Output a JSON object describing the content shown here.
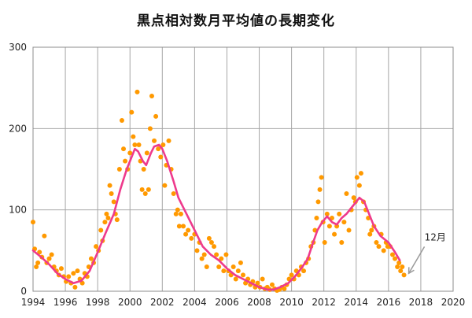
{
  "chart_data": {
    "type": "scatter",
    "title": "黒点相対数月平均値の長期変化",
    "xlabel": "",
    "ylabel": "",
    "xlim": [
      1994,
      2020
    ],
    "ylim": [
      0,
      300
    ],
    "x_ticks": [
      1994,
      1996,
      1998,
      2000,
      2002,
      2004,
      2006,
      2008,
      2010,
      2012,
      2014,
      2016,
      2018,
      2020
    ],
    "y_ticks": [
      0,
      100,
      200,
      300
    ],
    "grid": true,
    "annotation": {
      "text": "12月",
      "x": 2016.96,
      "y": 20
    },
    "series": [
      {
        "type": "scatter",
        "color": "#ff9900",
        "points": [
          [
            1994.0,
            85
          ],
          [
            1994.1,
            52
          ],
          [
            1994.2,
            30
          ],
          [
            1994.3,
            35
          ],
          [
            1994.4,
            48
          ],
          [
            1994.55,
            42
          ],
          [
            1994.7,
            68
          ],
          [
            1994.85,
            35
          ],
          [
            1995.0,
            40
          ],
          [
            1995.15,
            45
          ],
          [
            1995.3,
            30
          ],
          [
            1995.45,
            25
          ],
          [
            1995.6,
            20
          ],
          [
            1995.75,
            28
          ],
          [
            1995.9,
            18
          ],
          [
            1996.05,
            12
          ],
          [
            1996.2,
            18
          ],
          [
            1996.35,
            10
          ],
          [
            1996.5,
            22
          ],
          [
            1996.6,
            5
          ],
          [
            1996.75,
            25
          ],
          [
            1996.9,
            15
          ],
          [
            1997.05,
            10
          ],
          [
            1997.2,
            22
          ],
          [
            1997.35,
            18
          ],
          [
            1997.45,
            30
          ],
          [
            1997.6,
            40
          ],
          [
            1997.75,
            35
          ],
          [
            1997.9,
            55
          ],
          [
            1998.05,
            50
          ],
          [
            1998.2,
            75
          ],
          [
            1998.3,
            62
          ],
          [
            1998.45,
            85
          ],
          [
            1998.55,
            95
          ],
          [
            1998.65,
            90
          ],
          [
            1998.75,
            130
          ],
          [
            1998.85,
            120
          ],
          [
            1999.0,
            110
          ],
          [
            1999.1,
            95
          ],
          [
            1999.2,
            88
          ],
          [
            1999.35,
            150
          ],
          [
            1999.5,
            210
          ],
          [
            1999.6,
            175
          ],
          [
            1999.7,
            160
          ],
          [
            1999.85,
            150
          ],
          [
            2000.0,
            170
          ],
          [
            2000.1,
            220
          ],
          [
            2000.2,
            190
          ],
          [
            2000.3,
            180
          ],
          [
            2000.45,
            245
          ],
          [
            2000.55,
            180
          ],
          [
            2000.65,
            160
          ],
          [
            2000.75,
            125
          ],
          [
            2000.85,
            150
          ],
          [
            2000.95,
            120
          ],
          [
            2001.05,
            170
          ],
          [
            2001.15,
            125
          ],
          [
            2001.25,
            200
          ],
          [
            2001.35,
            240
          ],
          [
            2001.5,
            185
          ],
          [
            2001.6,
            215
          ],
          [
            2001.75,
            175
          ],
          [
            2001.9,
            165
          ],
          [
            2002.05,
            180
          ],
          [
            2002.15,
            130
          ],
          [
            2002.25,
            155
          ],
          [
            2002.4,
            185
          ],
          [
            2002.55,
            150
          ],
          [
            2002.7,
            120
          ],
          [
            2002.85,
            95
          ],
          [
            2002.95,
            100
          ],
          [
            2003.05,
            80
          ],
          [
            2003.15,
            95
          ],
          [
            2003.3,
            80
          ],
          [
            2003.45,
            70
          ],
          [
            2003.6,
            75
          ],
          [
            2003.8,
            65
          ],
          [
            2004.0,
            70
          ],
          [
            2004.15,
            50
          ],
          [
            2004.3,
            60
          ],
          [
            2004.45,
            40
          ],
          [
            2004.6,
            45
          ],
          [
            2004.75,
            30
          ],
          [
            2004.9,
            65
          ],
          [
            2005.05,
            60
          ],
          [
            2005.2,
            55
          ],
          [
            2005.35,
            45
          ],
          [
            2005.5,
            30
          ],
          [
            2005.65,
            40
          ],
          [
            2005.8,
            25
          ],
          [
            2005.95,
            45
          ],
          [
            2006.1,
            25
          ],
          [
            2006.25,
            20
          ],
          [
            2006.4,
            30
          ],
          [
            2006.55,
            15
          ],
          [
            2006.7,
            25
          ],
          [
            2006.85,
            35
          ],
          [
            2007.0,
            20
          ],
          [
            2007.15,
            10
          ],
          [
            2007.3,
            15
          ],
          [
            2007.45,
            8
          ],
          [
            2007.6,
            12
          ],
          [
            2007.75,
            5
          ],
          [
            2007.9,
            10
          ],
          [
            2008.05,
            5
          ],
          [
            2008.2,
            15
          ],
          [
            2008.35,
            3
          ],
          [
            2008.5,
            5
          ],
          [
            2008.65,
            2
          ],
          [
            2008.8,
            8
          ],
          [
            2008.95,
            3
          ],
          [
            2009.1,
            1
          ],
          [
            2009.25,
            2
          ],
          [
            2009.4,
            5
          ],
          [
            2009.55,
            3
          ],
          [
            2009.7,
            8
          ],
          [
            2009.85,
            15
          ],
          [
            2010.0,
            20
          ],
          [
            2010.15,
            15
          ],
          [
            2010.3,
            25
          ],
          [
            2010.45,
            20
          ],
          [
            2010.6,
            30
          ],
          [
            2010.75,
            25
          ],
          [
            2010.9,
            35
          ],
          [
            2011.05,
            40
          ],
          [
            2011.2,
            55
          ],
          [
            2011.35,
            60
          ],
          [
            2011.45,
            75
          ],
          [
            2011.55,
            90
          ],
          [
            2011.65,
            110
          ],
          [
            2011.75,
            125
          ],
          [
            2011.85,
            140
          ],
          [
            2011.95,
            85
          ],
          [
            2012.05,
            60
          ],
          [
            2012.2,
            95
          ],
          [
            2012.35,
            80
          ],
          [
            2012.5,
            90
          ],
          [
            2012.65,
            70
          ],
          [
            2012.8,
            80
          ],
          [
            2012.95,
            95
          ],
          [
            2013.1,
            60
          ],
          [
            2013.25,
            85
          ],
          [
            2013.4,
            120
          ],
          [
            2013.55,
            75
          ],
          [
            2013.7,
            100
          ],
          [
            2013.85,
            115
          ],
          [
            2013.95,
            110
          ],
          [
            2014.05,
            140
          ],
          [
            2014.2,
            130
          ],
          [
            2014.3,
            145
          ],
          [
            2014.45,
            110
          ],
          [
            2014.6,
            100
          ],
          [
            2014.75,
            90
          ],
          [
            2014.85,
            70
          ],
          [
            2014.95,
            75
          ],
          [
            2015.1,
            80
          ],
          [
            2015.25,
            60
          ],
          [
            2015.4,
            55
          ],
          [
            2015.55,
            70
          ],
          [
            2015.7,
            50
          ],
          [
            2015.85,
            60
          ],
          [
            2015.95,
            55
          ],
          [
            2016.1,
            55
          ],
          [
            2016.25,
            45
          ],
          [
            2016.4,
            40
          ],
          [
            2016.55,
            30
          ],
          [
            2016.65,
            35
          ],
          [
            2016.75,
            25
          ],
          [
            2016.85,
            30
          ],
          [
            2016.96,
            20
          ]
        ]
      },
      {
        "type": "line",
        "color": "#ee3a8c",
        "points": [
          [
            1994.0,
            50
          ],
          [
            1994.5,
            42
          ],
          [
            1995.0,
            33
          ],
          [
            1995.5,
            22
          ],
          [
            1996.0,
            15
          ],
          [
            1996.5,
            10
          ],
          [
            1997.0,
            13
          ],
          [
            1997.5,
            25
          ],
          [
            1998.0,
            48
          ],
          [
            1998.5,
            72
          ],
          [
            1999.0,
            95
          ],
          [
            1999.4,
            125
          ],
          [
            1999.8,
            150
          ],
          [
            2000.1,
            165
          ],
          [
            2000.3,
            175
          ],
          [
            2000.5,
            172
          ],
          [
            2000.8,
            160
          ],
          [
            2001.0,
            155
          ],
          [
            2001.3,
            170
          ],
          [
            2001.5,
            178
          ],
          [
            2001.8,
            180
          ],
          [
            2002.0,
            175
          ],
          [
            2002.3,
            160
          ],
          [
            2002.7,
            135
          ],
          [
            2003.0,
            115
          ],
          [
            2003.5,
            95
          ],
          [
            2004.0,
            75
          ],
          [
            2004.5,
            55
          ],
          [
            2005.0,
            45
          ],
          [
            2005.5,
            38
          ],
          [
            2006.0,
            28
          ],
          [
            2006.5,
            20
          ],
          [
            2007.0,
            15
          ],
          [
            2007.5,
            10
          ],
          [
            2008.0,
            5
          ],
          [
            2008.5,
            2
          ],
          [
            2008.9,
            2
          ],
          [
            2009.3,
            5
          ],
          [
            2009.8,
            10
          ],
          [
            2010.2,
            18
          ],
          [
            2010.6,
            28
          ],
          [
            2011.0,
            40
          ],
          [
            2011.3,
            58
          ],
          [
            2011.6,
            75
          ],
          [
            2011.9,
            85
          ],
          [
            2012.2,
            92
          ],
          [
            2012.5,
            85
          ],
          [
            2012.8,
            82
          ],
          [
            2013.1,
            90
          ],
          [
            2013.4,
            95
          ],
          [
            2013.8,
            105
          ],
          [
            2014.2,
            115
          ],
          [
            2014.5,
            110
          ],
          [
            2014.8,
            95
          ],
          [
            2015.1,
            80
          ],
          [
            2015.5,
            68
          ],
          [
            2016.0,
            60
          ],
          [
            2016.4,
            48
          ],
          [
            2016.7,
            38
          ]
        ]
      }
    ]
  }
}
